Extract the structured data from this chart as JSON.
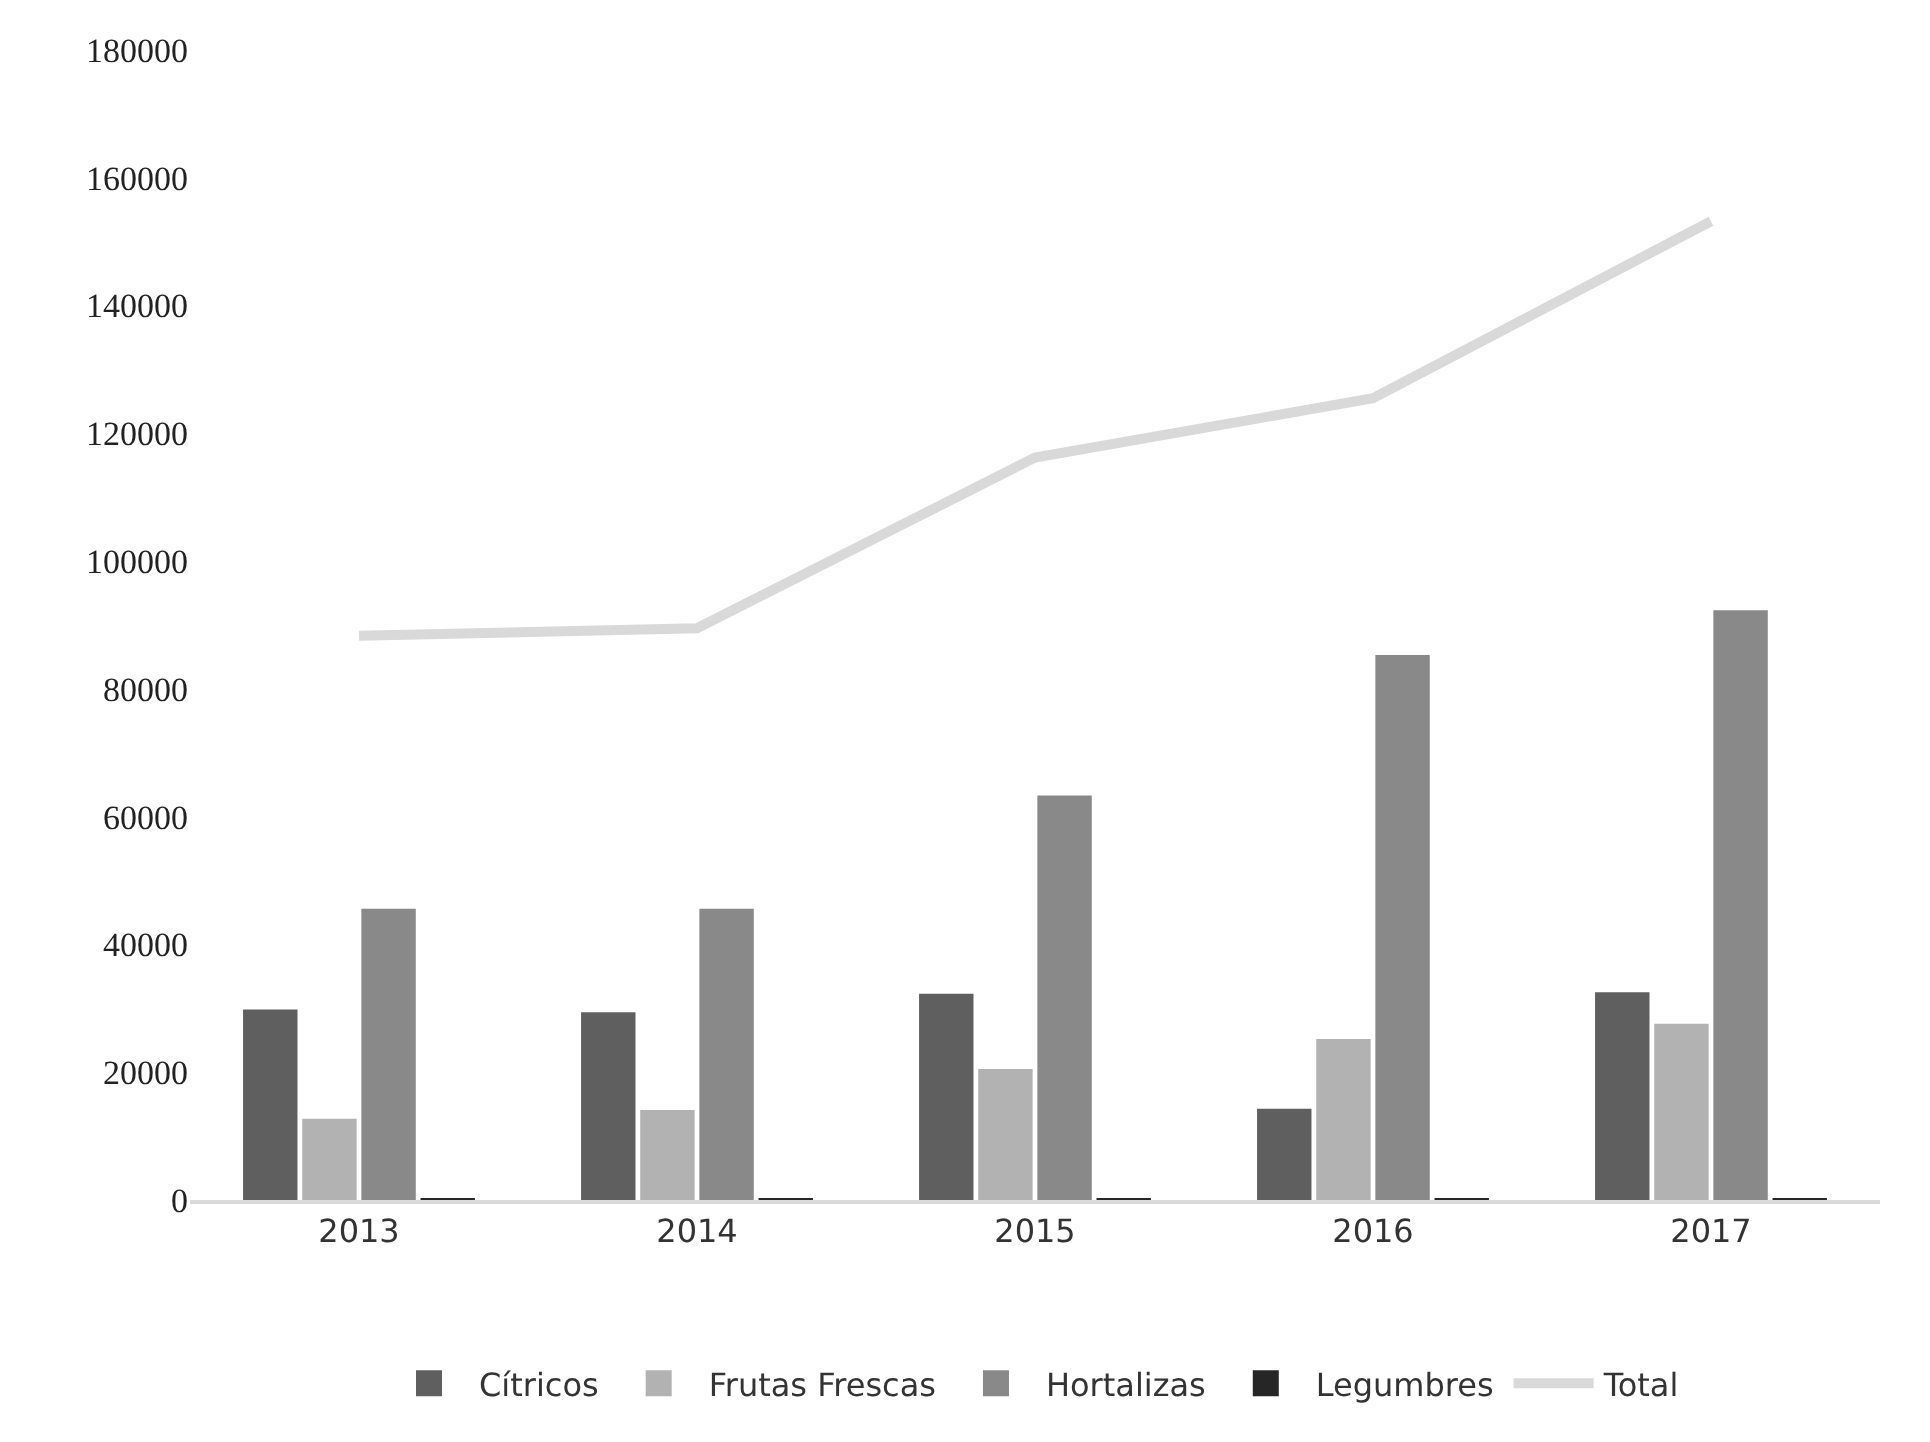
{
  "chart_data": {
    "type": "bar",
    "categories": [
      "2013",
      "2014",
      "2015",
      "2016",
      "2017"
    ],
    "series": [
      {
        "name": "Cítricos",
        "color": "#5f5f5f",
        "values": [
          29800,
          29400,
          32300,
          14300,
          32500
        ]
      },
      {
        "name": "Frutas Frescas",
        "color": "#b2b2b2",
        "values": [
          12700,
          14100,
          20500,
          25200,
          27600
        ]
      },
      {
        "name": "Hortalizas",
        "color": "#898989",
        "values": [
          45600,
          45600,
          63300,
          85300,
          92300
        ]
      },
      {
        "name": "Legumbres",
        "color": "#262626",
        "values": [
          200,
          200,
          300,
          300,
          300
        ]
      },
      {
        "name": "Total",
        "type": "line",
        "color": "#d9d9d9",
        "values": [
          88300,
          89500,
          116200,
          125500,
          153200
        ]
      }
    ],
    "ylim": [
      0,
      180000
    ],
    "yticks": [
      0,
      20000,
      40000,
      60000,
      80000,
      100000,
      120000,
      140000,
      160000,
      180000
    ],
    "grid": false,
    "legend": "bottom",
    "line_style": "solid",
    "marker": "none"
  }
}
